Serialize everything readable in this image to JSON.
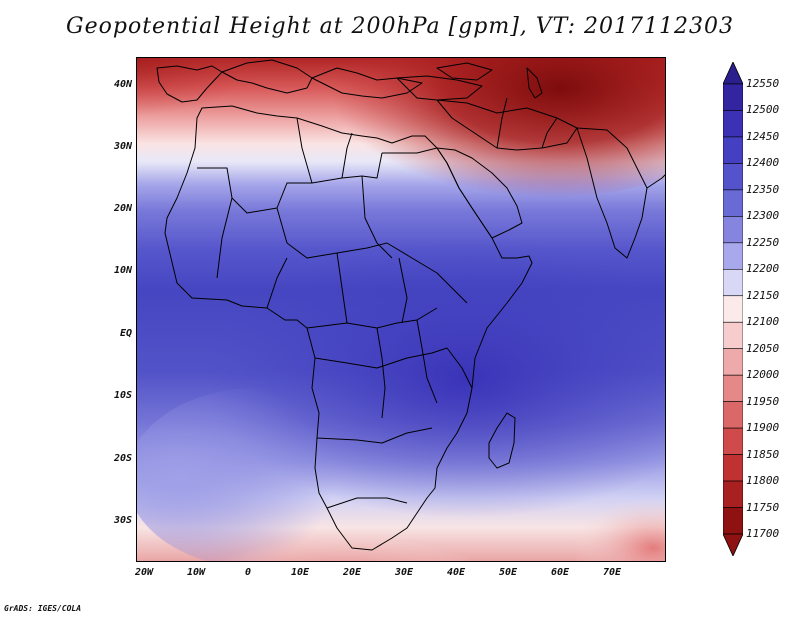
{
  "title": "Geopotential Height at 200hPa [gpm], VT: 2017112303",
  "credit": "GrADS: IGES/COLA",
  "lat_labels": [
    "40N",
    "30N",
    "20N",
    "10N",
    "EQ",
    "10S",
    "20S",
    "30S"
  ],
  "lon_labels": [
    "20W",
    "10W",
    "0",
    "10E",
    "20E",
    "30E",
    "40E",
    "50E",
    "60E",
    "70E"
  ],
  "colorbar": {
    "levels": [
      "12550",
      "12500",
      "12450",
      "12400",
      "12350",
      "12300",
      "12250",
      "12200",
      "12150",
      "12100",
      "12050",
      "12000",
      "11950",
      "11900",
      "11850",
      "11800",
      "11750",
      "11700"
    ],
    "colors": [
      "#2a1f8c",
      "#3325a0",
      "#3a31b4",
      "#4540c2",
      "#5553cc",
      "#6a6ad6",
      "#8585e0",
      "#a8a8ec",
      "#d8d8f6",
      "#fbeaea",
      "#f6cccc",
      "#eeaaaa",
      "#e58888",
      "#db6868",
      "#cf4a4a",
      "#c03232",
      "#a92020",
      "#8e1212"
    ],
    "top_arrow_color": "#2a1f8c",
    "bottom_arrow_color": "#8e1212"
  }
}
